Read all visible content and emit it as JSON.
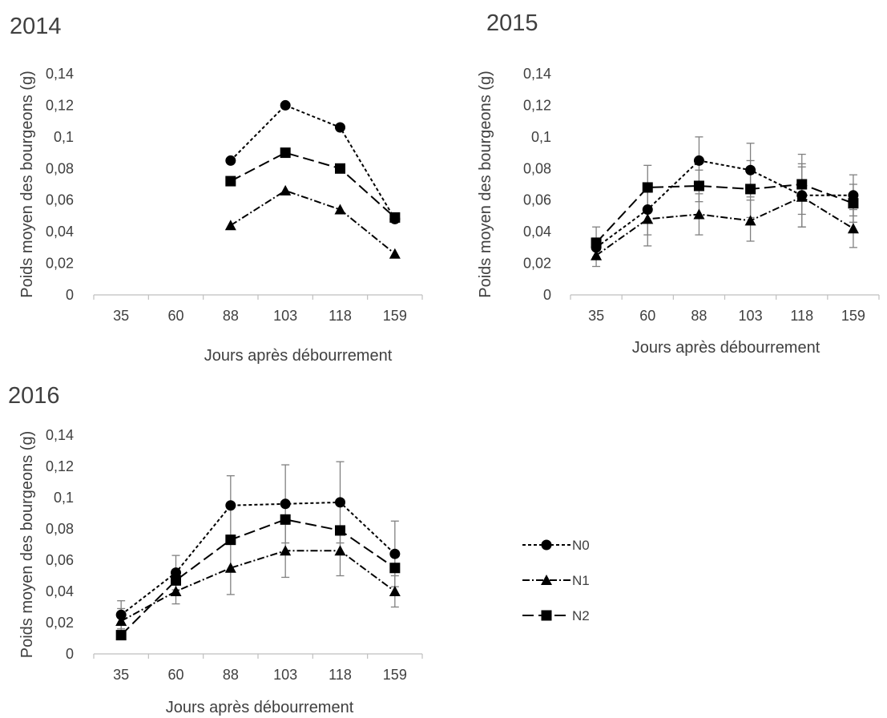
{
  "chart_data": [
    {
      "type": "line",
      "title": "2014",
      "xlabel": "Jours après débourrement",
      "ylabel": "Poids moyen des bourgeons (g)",
      "categories": [
        "35",
        "60",
        "88",
        "103",
        "118",
        "159"
      ],
      "ylim": [
        0,
        0.14
      ],
      "yticks": [
        "0",
        "0,02",
        "0,04",
        "0,06",
        "0,08",
        "0,1",
        "0,12",
        "0,14"
      ],
      "grid": false,
      "series": [
        {
          "name": "N0",
          "values": [
            null,
            null,
            0.085,
            0.12,
            0.106,
            0.048
          ],
          "errors": null
        },
        {
          "name": "N1",
          "values": [
            null,
            null,
            0.044,
            0.066,
            0.054,
            0.026
          ],
          "errors": null
        },
        {
          "name": "N2",
          "values": [
            null,
            null,
            0.072,
            0.09,
            0.08,
            0.049
          ],
          "errors": null
        }
      ]
    },
    {
      "type": "line",
      "title": "2015",
      "xlabel": "Jours après débourrement",
      "ylabel": "Poids moyen des bourgeons (g)",
      "categories": [
        "35",
        "60",
        "88",
        "103",
        "118",
        "159"
      ],
      "ylim": [
        0,
        0.14
      ],
      "yticks": [
        "0",
        "0,02",
        "0,04",
        "0,06",
        "0,08",
        "0,1",
        "0,12",
        "0,14"
      ],
      "grid": false,
      "series": [
        {
          "name": "N0",
          "values": [
            0.03,
            0.054,
            0.085,
            0.079,
            0.063,
            0.063
          ],
          "errors": [
            0.006,
            0.016,
            0.015,
            0.017,
            0.02,
            0.013
          ]
        },
        {
          "name": "N1",
          "values": [
            0.025,
            0.048,
            0.051,
            0.047,
            0.062,
            0.042
          ],
          "errors": [
            0.007,
            0.017,
            0.013,
            0.013,
            0.019,
            0.012
          ]
        },
        {
          "name": "N2",
          "values": [
            0.033,
            0.068,
            0.069,
            0.067,
            0.07,
            0.058
          ],
          "errors": [
            0.01,
            0.014,
            0.01,
            0.018,
            0.019,
            0.012
          ]
        }
      ]
    },
    {
      "type": "line",
      "title": "2016",
      "xlabel": "Jours après débourrement",
      "ylabel": "Poids moyen des bourgeons (g)",
      "categories": [
        "35",
        "60",
        "88",
        "103",
        "118",
        "159"
      ],
      "ylim": [
        0,
        0.14
      ],
      "yticks": [
        "0",
        "0,02",
        "0,04",
        "0,06",
        "0,08",
        "0,1",
        "0,12",
        "0,14"
      ],
      "grid": false,
      "series": [
        {
          "name": "N0",
          "values": [
            0.025,
            0.052,
            0.095,
            0.096,
            0.097,
            0.064
          ],
          "errors": [
            0.009,
            0.011,
            0.019,
            0.025,
            0.026,
            0.021
          ]
        },
        {
          "name": "N1",
          "values": [
            0.021,
            0.04,
            0.055,
            0.066,
            0.066,
            0.04
          ],
          "errors": [
            0.008,
            0.008,
            0.017,
            0.017,
            0.016,
            0.01
          ]
        },
        {
          "name": "N2",
          "values": [
            0.012,
            0.047,
            0.073,
            0.086,
            0.079,
            0.055
          ],
          "errors": null
        }
      ]
    }
  ],
  "legend": {
    "placement": "right of 2016 panel",
    "items": [
      {
        "label": "N0",
        "marker": "circle",
        "dash": "dotted"
      },
      {
        "label": "N1",
        "marker": "triangle",
        "dash": "dash-dot"
      },
      {
        "label": "N2",
        "marker": "square",
        "dash": "long-dash"
      }
    ]
  },
  "colors": {
    "series": "#000000",
    "axis": "#bfbfbf",
    "text": "#404040",
    "errorbar": "#808080"
  }
}
